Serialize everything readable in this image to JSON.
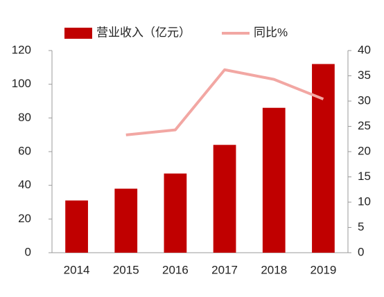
{
  "chart_data": {
    "type": "bar",
    "categories": [
      "2014",
      "2015",
      "2016",
      "2017",
      "2018",
      "2019"
    ],
    "series": [
      {
        "name": "营业收入（亿元）",
        "type": "bar",
        "color": "#c00000",
        "values": [
          31,
          38,
          47,
          64,
          86,
          112
        ]
      },
      {
        "name": "同比%",
        "type": "line",
        "color": "#f2a7a3",
        "axis": "y2",
        "values": [
          null,
          23.3,
          24.3,
          36.2,
          34.3,
          30.4
        ]
      }
    ],
    "ylim": [
      0,
      120
    ],
    "yticks": [
      0,
      20,
      40,
      60,
      80,
      100,
      120
    ],
    "y2lim": [
      0,
      40
    ],
    "y2ticks": [
      0,
      5,
      10,
      15,
      20,
      25,
      30,
      35,
      40
    ],
    "legend": "top",
    "grid": false
  }
}
